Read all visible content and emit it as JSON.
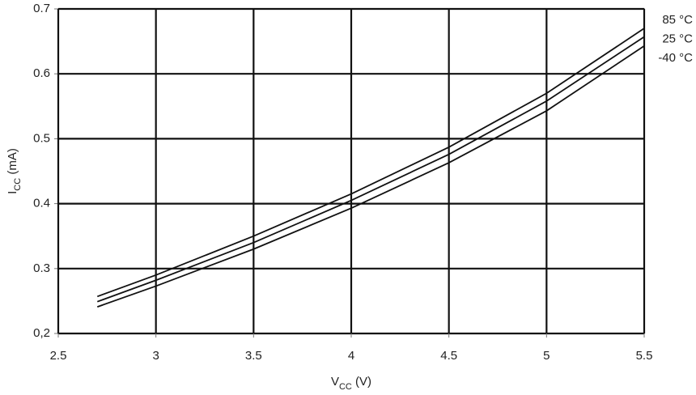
{
  "chart_data": {
    "type": "line",
    "xlabel_parts": [
      "V",
      "CC",
      " (V)"
    ],
    "ylabel_parts": [
      "I",
      "CC",
      " (mA)"
    ],
    "x": [
      2.7,
      3,
      3.5,
      4,
      4.5,
      5,
      5.5
    ],
    "series": [
      {
        "name": "85 °C",
        "color": "#111111",
        "values": [
          0.257,
          0.29,
          0.35,
          0.415,
          0.487,
          0.57,
          0.67
        ]
      },
      {
        "name": "25 °C",
        "color": "#111111",
        "values": [
          0.249,
          0.282,
          0.34,
          0.405,
          0.476,
          0.558,
          0.657
        ]
      },
      {
        "name": "-40 °C",
        "color": "#111111",
        "values": [
          0.241,
          0.273,
          0.33,
          0.393,
          0.463,
          0.543,
          0.643
        ]
      }
    ],
    "xlim": [
      2.5,
      5.5
    ],
    "xticks": [
      2.5,
      3,
      3.5,
      4,
      4.5,
      5,
      5.5
    ],
    "ylim": [
      0.2,
      0.7
    ],
    "yticks": [
      {
        "value": 0.2,
        "label": "0,2"
      },
      0.3,
      0.4,
      0.5,
      0.6,
      0.7
    ],
    "grid": true
  }
}
